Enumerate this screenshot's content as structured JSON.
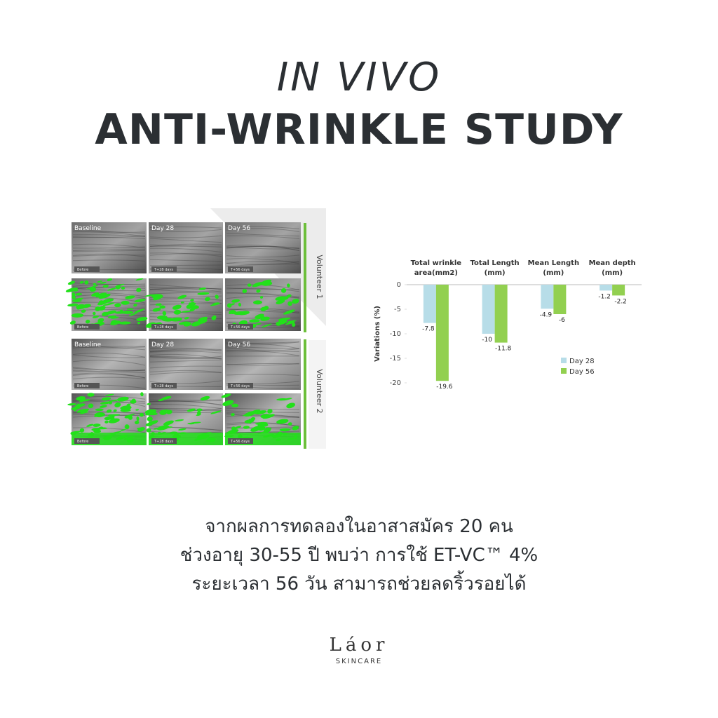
{
  "header": {
    "title_line1": "IN VIVO",
    "title_line2": "ANTI-WRINKLE STUDY"
  },
  "photo_panel": {
    "columns": [
      "Baseline",
      "Day 28",
      "Day 56"
    ],
    "captions": [
      "Before",
      "T+28 days",
      "T+56 days"
    ],
    "volunteers": [
      "Volunteer 1",
      "Volunteer 2"
    ]
  },
  "chart_data": {
    "type": "bar",
    "categories": [
      "Total wrinkle\narea(mm2)",
      "Total Length\n(mm)",
      "Mean Length\n(mm)",
      "Mean depth\n(mm)"
    ],
    "y_label": "Variations (%)",
    "series": [
      {
        "name": "Day 28",
        "color": "#b7dde8",
        "values": [
          -7.8,
          -10,
          -4.9,
          -1.2
        ]
      },
      {
        "name": "Day 56",
        "color": "#92d050",
        "values": [
          -19.6,
          -11.8,
          -6,
          -2.2
        ]
      }
    ],
    "ylim": [
      -20,
      0
    ],
    "yticks": [
      0,
      -5,
      -10,
      -15,
      -20
    ],
    "legend": "right"
  },
  "body": {
    "lines": [
      "จากผลการทดลองในอาสาสมัคร 20 คน",
      "ช่วงอายุ 30-55 ปี พบว่า การใช้ ET-VC™ 4%",
      "ระยะเวลา 56 วัน สามารถช่วยลดริ้วรอยได้"
    ]
  },
  "logo": {
    "brand": "Láor",
    "tagline": "SKINCARE"
  }
}
